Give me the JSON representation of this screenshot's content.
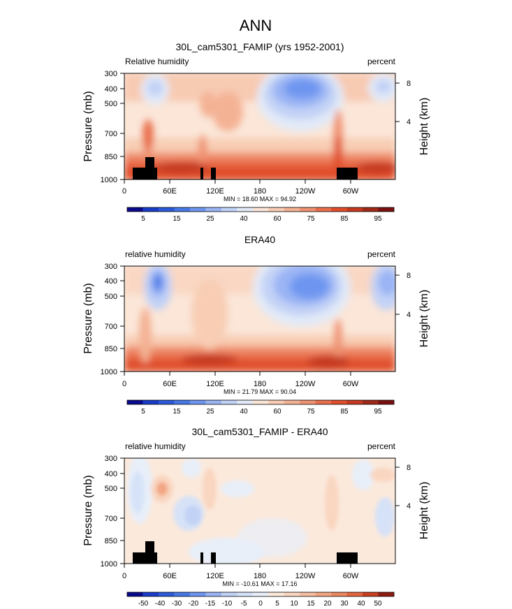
{
  "figure": {
    "title": "ANN"
  },
  "colors": {
    "rh_levels": [
      "#0a0a8c",
      "#1a3cc8",
      "#2c5ad8",
      "#4678e6",
      "#6e96f0",
      "#9ab4f4",
      "#c2d2f6",
      "#e2eaf8",
      "#fbe6d8",
      "#f8cdb4",
      "#f4b294",
      "#ef9272",
      "#e96e4c",
      "#e04e2c",
      "#c53a20",
      "#a02818",
      "#7a1010"
    ],
    "diff_levels": [
      "#0a0a8c",
      "#1a3cc8",
      "#2c5ad8",
      "#4678e6",
      "#6e96f0",
      "#9ab4f4",
      "#c2d2f6",
      "#d6e2f8",
      "#e8eff9",
      "#fbe9dc",
      "#f9d6c0",
      "#f6bfa2",
      "#f2a582",
      "#ec8760",
      "#e4663e",
      "#c9401f",
      "#8e1a10"
    ],
    "land": "#000000"
  },
  "panels": [
    {
      "title": "30L_cam5301_FAMIP (yrs 1952-2001)",
      "left_label": "Relative humidity",
      "right_label": "percent",
      "ylabel": "Pressure (mb)",
      "ylabel_right": "Height (km)",
      "stats": "MIN = 18.60  MAX = 94.92",
      "colorbar_labels": [
        "5",
        "15",
        "25",
        "40",
        "60",
        "75",
        "85",
        "95"
      ]
    },
    {
      "title": "ERA40",
      "left_label": "relative humidity",
      "right_label": "percent",
      "ylabel": "Pressure (mb)",
      "ylabel_right": "Height (km)",
      "stats": "MIN = 21.79  MAX = 90.04",
      "colorbar_labels": [
        "5",
        "15",
        "25",
        "40",
        "60",
        "75",
        "85",
        "95"
      ]
    },
    {
      "title": "30L_cam5301_FAMIP - ERA40",
      "left_label": "relative humidity",
      "right_label": "percent",
      "ylabel": "Pressure (mb)",
      "ylabel_right": "Height (km)",
      "stats": "MIN = -10.61  MAX = 17.16",
      "colorbar_labels": [
        "-50",
        "-40",
        "-30",
        "-20",
        "-15",
        "-10",
        "-5",
        "0",
        "5",
        "10",
        "15",
        "20",
        "30",
        "40",
        "50"
      ]
    }
  ],
  "chart_data": [
    {
      "type": "heatmap",
      "title": "30L_cam5301_FAMIP (yrs 1952-2001)",
      "xlabel": "",
      "ylabel": "Pressure (mb)",
      "y2label": "Height (km)",
      "x_ticks": [
        "0",
        "60E",
        "120E",
        "180",
        "120W",
        "60W"
      ],
      "y_ticks": [
        "300",
        "400",
        "500",
        "700",
        "850",
        "1000"
      ],
      "y2_ticks": [
        "8",
        "4"
      ],
      "y_scale": "log",
      "ylim": [
        1000,
        300
      ],
      "xlim": [
        0,
        360
      ],
      "min": 18.6,
      "max": 94.92,
      "levels": [
        5,
        10,
        15,
        20,
        25,
        30,
        40,
        50,
        60,
        65,
        70,
        75,
        80,
        85,
        90,
        95
      ],
      "units": "percent"
    },
    {
      "type": "heatmap",
      "title": "ERA40",
      "xlabel": "",
      "ylabel": "Pressure (mb)",
      "y2label": "Height (km)",
      "x_ticks": [
        "0",
        "60E",
        "120E",
        "180",
        "120W",
        "60W"
      ],
      "y_ticks": [
        "300",
        "400",
        "500",
        "700",
        "850",
        "1000"
      ],
      "y2_ticks": [
        "8",
        "4"
      ],
      "y_scale": "log",
      "ylim": [
        1000,
        300
      ],
      "xlim": [
        0,
        360
      ],
      "min": 21.79,
      "max": 90.04,
      "levels": [
        5,
        10,
        15,
        20,
        25,
        30,
        40,
        50,
        60,
        65,
        70,
        75,
        80,
        85,
        90,
        95
      ],
      "units": "percent"
    },
    {
      "type": "heatmap",
      "title": "30L_cam5301_FAMIP - ERA40",
      "xlabel": "",
      "ylabel": "Pressure (mb)",
      "y2label": "Height (km)",
      "x_ticks": [
        "0",
        "60E",
        "120E",
        "180",
        "120W",
        "60W"
      ],
      "y_ticks": [
        "300",
        "400",
        "500",
        "700",
        "850",
        "1000"
      ],
      "y2_ticks": [
        "8",
        "4"
      ],
      "y_scale": "log",
      "ylim": [
        1000,
        300
      ],
      "xlim": [
        0,
        360
      ],
      "min": -10.61,
      "max": 17.16,
      "levels": [
        -50,
        -40,
        -30,
        -20,
        -15,
        -10,
        -5,
        0,
        5,
        10,
        15,
        20,
        30,
        40,
        50
      ],
      "units": "percent"
    }
  ]
}
